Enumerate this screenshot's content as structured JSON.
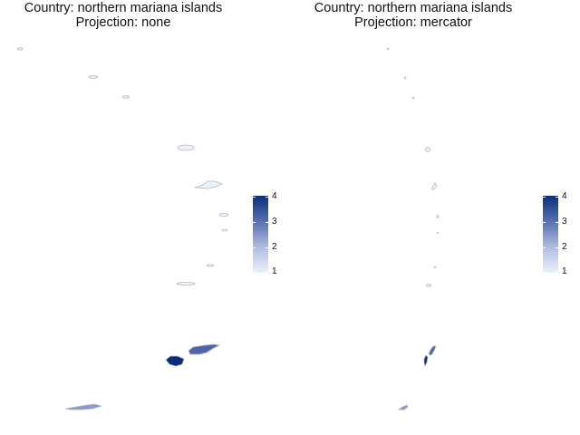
{
  "panels": [
    {
      "title_line1": "Country: northern mariana islands",
      "title_line2": "Projection: none"
    },
    {
      "title_line1": "Country: northern mariana islands",
      "title_line2": "Projection: mercator"
    }
  ],
  "legend": {
    "labels": [
      "4",
      "3",
      "2",
      "1"
    ],
    "min": 1,
    "max": 4,
    "colors": {
      "high": "#0d2d7c",
      "low": "#eef1fb",
      "outline": "#b4b8cc"
    }
  },
  "map_data": {
    "country": "northern mariana islands",
    "value_scale": [
      1,
      4
    ]
  }
}
